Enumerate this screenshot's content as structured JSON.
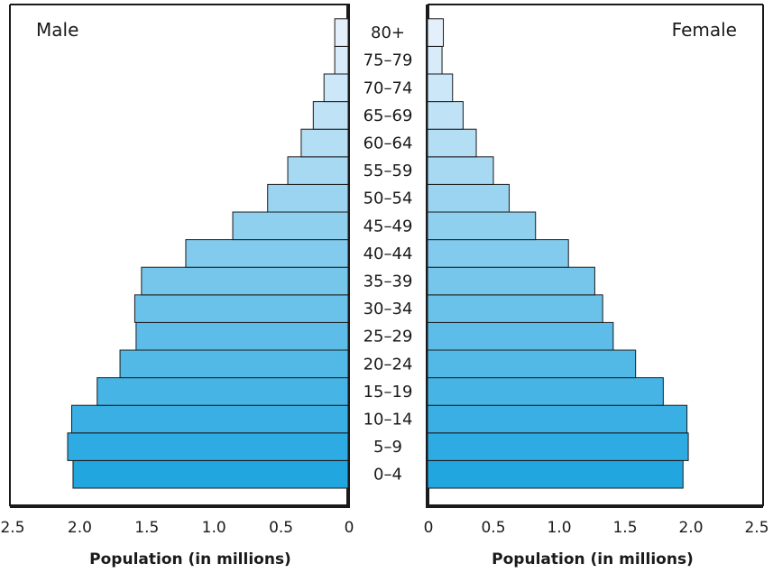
{
  "chart_data": {
    "type": "bar",
    "subtype": "population-pyramid",
    "orientation": "horizontal",
    "categories": [
      "0–4",
      "5–9",
      "10–14",
      "15–19",
      "20–24",
      "25–29",
      "30–34",
      "35–39",
      "40–44",
      "45–49",
      "50–54",
      "55–59",
      "60–64",
      "65–69",
      "70–74",
      "75–79",
      "80+"
    ],
    "series": [
      {
        "name": "Male",
        "values": [
          2.05,
          2.09,
          2.06,
          1.87,
          1.7,
          1.58,
          1.59,
          1.54,
          1.21,
          0.86,
          0.6,
          0.45,
          0.35,
          0.26,
          0.18,
          0.1,
          0.1
        ]
      },
      {
        "name": "Female",
        "values": [
          1.94,
          1.98,
          1.97,
          1.79,
          1.58,
          1.41,
          1.33,
          1.27,
          1.07,
          0.82,
          0.62,
          0.5,
          0.37,
          0.27,
          0.19,
          0.11,
          0.12
        ]
      }
    ],
    "xlim": [
      0,
      2.5
    ],
    "xticks": [
      "0",
      "0.5",
      "1.0",
      "1.5",
      "2.0",
      "2.5"
    ],
    "xlabel_left": "Population (in millions)",
    "xlabel_right": "Population (in millions)",
    "bar_color_bottom": "#22a6e0",
    "bar_color_top": "#e3f0fb",
    "grid": false
  }
}
